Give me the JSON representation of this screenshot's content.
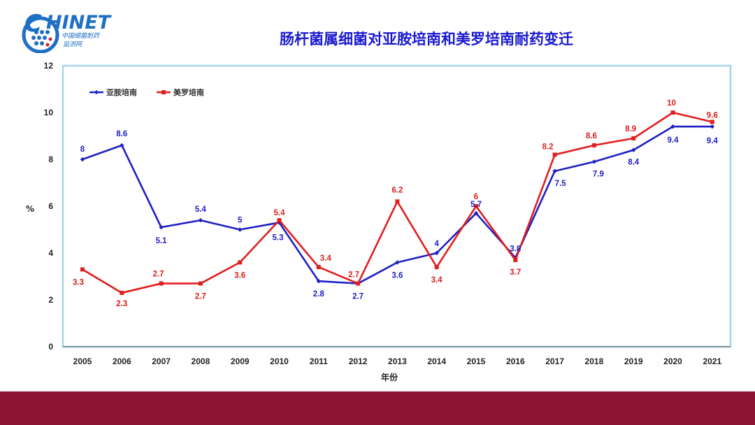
{
  "logo": {
    "brand": "HINET",
    "brand_initial": "C",
    "subtitle_cn": "中国细菌耐药",
    "subtitle_cn2": "监测网"
  },
  "chart_data": {
    "type": "line",
    "title": "肠杆菌属细菌对亚胺培南和美罗培南耐药变迁",
    "xlabel": "年份",
    "ylabel": "%",
    "ylim": [
      0,
      12
    ],
    "yticks": [
      0,
      2,
      4,
      6,
      8,
      10,
      12
    ],
    "categories": [
      "2005",
      "2006",
      "2007",
      "2008",
      "2009",
      "2010",
      "2011",
      "2012",
      "2013",
      "2014",
      "2015",
      "2016",
      "2017",
      "2018",
      "2019",
      "2020",
      "2021"
    ],
    "series": [
      {
        "name": "亚胺培南",
        "color": "#1f1fc4",
        "values": [
          8,
          8.6,
          5.1,
          5.4,
          5,
          5.3,
          2.8,
          2.7,
          3.6,
          4,
          5.7,
          3.8,
          7.5,
          7.9,
          8.4,
          9.4,
          9.4
        ],
        "labels": [
          "8",
          "8.6",
          "5.1",
          "5.4",
          "5",
          "5.3",
          "2.8",
          "2.7",
          "3.6",
          "4",
          "5.7",
          "3.8",
          "7.5",
          "7.9",
          "8.4",
          "9.4",
          "9.4"
        ]
      },
      {
        "name": "美罗培南",
        "color": "#e01f1f",
        "values": [
          3.3,
          2.3,
          2.7,
          2.7,
          3.6,
          5.4,
          3.4,
          2.7,
          6.2,
          3.4,
          6,
          3.7,
          8.2,
          8.6,
          8.9,
          10,
          9.6
        ],
        "labels": [
          "3.3",
          "2.3",
          "2.7",
          "2.7",
          "3.6",
          "5.4",
          "3.4",
          "2.7",
          "6.2",
          "3.4",
          "6",
          "3.7",
          "8.2",
          "8.6",
          "8.9",
          "10",
          "9.6"
        ]
      }
    ],
    "legend": "top-left",
    "grid": false
  },
  "colors": {
    "plot_border": "#a8d4ec",
    "footer_band": "#8b1530",
    "title": "#1a1ad0"
  }
}
